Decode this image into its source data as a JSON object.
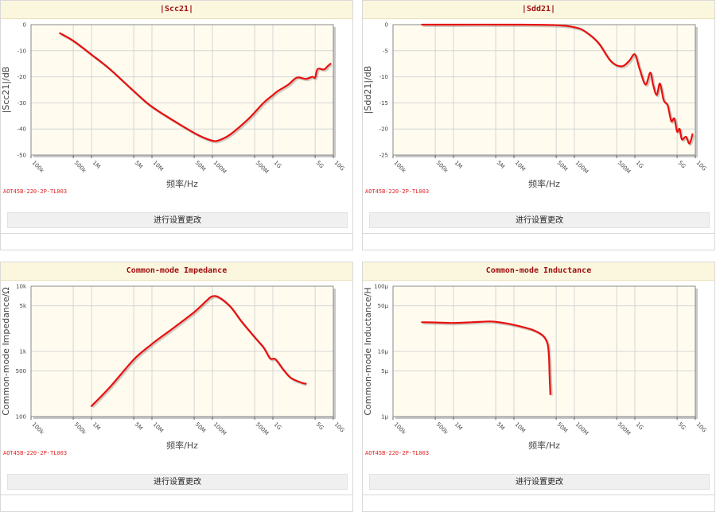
{
  "edit_button_label": "进行设置更改",
  "part_number": "AOT45B-220-2P-TL003",
  "chart_data": [
    {
      "id": "scc21",
      "type": "line",
      "title": "|Scc21|",
      "xlabel": "频率/Hz",
      "ylabel": "|Scc21|/dB",
      "x_scale": "log",
      "xlim": [
        100000,
        10000000000
      ],
      "ylim": [
        -50,
        0
      ],
      "x_ticks": [
        {
          "v": 100000,
          "label": "100k"
        },
        {
          "v": 500000,
          "label": "500k"
        },
        {
          "v": 1000000,
          "label": "1M"
        },
        {
          "v": 5000000,
          "label": "5M"
        },
        {
          "v": 10000000,
          "label": "10M"
        },
        {
          "v": 50000000,
          "label": "50M"
        },
        {
          "v": 100000000,
          "label": "100M"
        },
        {
          "v": 500000000,
          "label": "500M"
        },
        {
          "v": 1000000000,
          "label": "1G"
        },
        {
          "v": 5000000000,
          "label": "5G"
        },
        {
          "v": 10000000000,
          "label": "10G"
        }
      ],
      "y_ticks": [
        {
          "v": 0,
          "label": "0"
        },
        {
          "v": -10,
          "label": "-10"
        },
        {
          "v": -20,
          "label": "-20"
        },
        {
          "v": -30,
          "label": "-30"
        },
        {
          "v": -40,
          "label": "-40"
        },
        {
          "v": -50,
          "label": "-50"
        }
      ],
      "grid": true,
      "color": "#e81010",
      "series": [
        {
          "x": [
            300000,
            500000,
            1000000,
            2000000,
            5000000,
            10000000,
            30000000,
            60000000,
            100000000,
            130000000,
            200000000,
            400000000,
            700000000,
            1000000000,
            1200000000,
            1800000000,
            2500000000,
            3500000000,
            4500000000,
            5000000000,
            5500000000,
            7000000000,
            8000000000,
            9000000000
          ],
          "y": [
            -3.3,
            -6.2,
            -11.5,
            -17,
            -25.5,
            -31.5,
            -38.5,
            -42.5,
            -44.5,
            -44.3,
            -42,
            -36,
            -30,
            -27,
            -25.5,
            -23,
            -20.3,
            -20.8,
            -20,
            -20.3,
            -17,
            -17.2,
            -16,
            -15
          ]
        }
      ]
    },
    {
      "id": "sdd21",
      "type": "line",
      "title": "|Sdd21|",
      "xlabel": "频率/Hz",
      "ylabel": "|Sdd21|/dB",
      "x_scale": "log",
      "xlim": [
        100000,
        10000000000
      ],
      "ylim": [
        -25,
        0
      ],
      "x_ticks": [
        {
          "v": 100000,
          "label": "100k"
        },
        {
          "v": 500000,
          "label": "500k"
        },
        {
          "v": 1000000,
          "label": "1M"
        },
        {
          "v": 5000000,
          "label": "5M"
        },
        {
          "v": 10000000,
          "label": "10M"
        },
        {
          "v": 50000000,
          "label": "50M"
        },
        {
          "v": 100000000,
          "label": "100M"
        },
        {
          "v": 500000000,
          "label": "500M"
        },
        {
          "v": 1000000000,
          "label": "1G"
        },
        {
          "v": 5000000000,
          "label": "5G"
        },
        {
          "v": 10000000000,
          "label": "10G"
        }
      ],
      "y_ticks": [
        {
          "v": 0,
          "label": "0"
        },
        {
          "v": -5,
          "label": "-5"
        },
        {
          "v": -10,
          "label": "-10"
        },
        {
          "v": -15,
          "label": "-15"
        },
        {
          "v": -20,
          "label": "-20"
        },
        {
          "v": -25,
          "label": "-25"
        }
      ],
      "grid": true,
      "color": "#e81010",
      "series": [
        {
          "x": [
            300000,
            1000000,
            10000000,
            50000000,
            100000000,
            150000000,
            250000000,
            400000000,
            600000000,
            800000000,
            1000000000,
            1200000000,
            1500000000,
            1800000000,
            2000000000,
            2300000000,
            2600000000,
            3000000000,
            3500000000,
            4000000000,
            4500000000,
            5000000000,
            5500000000,
            6000000000,
            7000000000,
            8000000000,
            9000000000
          ],
          "y": [
            0,
            0,
            0,
            -0.1,
            -0.5,
            -1.3,
            -3.5,
            -7,
            -8,
            -7,
            -5.7,
            -8.5,
            -11.5,
            -9.2,
            -11.5,
            -13.5,
            -11.3,
            -14.5,
            -15.5,
            -18.5,
            -18,
            -20.5,
            -20,
            -22,
            -21.5,
            -22.8,
            -21
          ]
        }
      ]
    },
    {
      "id": "cm_impedance",
      "type": "line",
      "title": "Common-mode Impedance",
      "xlabel": "频率/Hz",
      "ylabel": "Common-mode Impedance/Ω",
      "x_scale": "log",
      "y_scale": "log",
      "xlim": [
        100000,
        10000000000
      ],
      "ylim": [
        100,
        10000
      ],
      "x_ticks": [
        {
          "v": 100000,
          "label": "100k"
        },
        {
          "v": 500000,
          "label": "500k"
        },
        {
          "v": 1000000,
          "label": "1M"
        },
        {
          "v": 5000000,
          "label": "5M"
        },
        {
          "v": 10000000,
          "label": "10M"
        },
        {
          "v": 50000000,
          "label": "50M"
        },
        {
          "v": 100000000,
          "label": "100M"
        },
        {
          "v": 500000000,
          "label": "500M"
        },
        {
          "v": 1000000000,
          "label": "1G"
        },
        {
          "v": 5000000000,
          "label": "5G"
        },
        {
          "v": 10000000000,
          "label": "10G"
        }
      ],
      "y_ticks": [
        {
          "v": 10000,
          "label": "10k"
        },
        {
          "v": 5000,
          "label": "5k"
        },
        {
          "v": 1000,
          "label": "1k"
        },
        {
          "v": 500,
          "label": "500"
        },
        {
          "v": 100,
          "label": "100"
        }
      ],
      "grid": true,
      "color": "#e81010",
      "series": [
        {
          "x": [
            1000000,
            2000000,
            5000000,
            10000000,
            20000000,
            50000000,
            80000000,
            100000000,
            130000000,
            200000000,
            300000000,
            500000000,
            700000000,
            900000000,
            1100000000,
            1500000000,
            2000000000,
            3000000000,
            3500000000
          ],
          "y": [
            145,
            280,
            750,
            1300,
            2100,
            4000,
            6000,
            7000,
            6700,
            4800,
            2900,
            1650,
            1150,
            780,
            760,
            520,
            390,
            330,
            320
          ]
        }
      ]
    },
    {
      "id": "cm_inductance",
      "type": "line",
      "title": "Common-mode Inductance",
      "xlabel": "频率/Hz",
      "ylabel": "Common-mode Inductance/H",
      "x_scale": "log",
      "y_scale": "log",
      "xlim": [
        100000,
        10000000000
      ],
      "ylim": [
        1,
        100
      ],
      "x_ticks": [
        {
          "v": 100000,
          "label": "100k"
        },
        {
          "v": 500000,
          "label": "500k"
        },
        {
          "v": 1000000,
          "label": "1M"
        },
        {
          "v": 5000000,
          "label": "5M"
        },
        {
          "v": 10000000,
          "label": "10M"
        },
        {
          "v": 50000000,
          "label": "50M"
        },
        {
          "v": 100000000,
          "label": "100M"
        },
        {
          "v": 500000000,
          "label": "500M"
        },
        {
          "v": 1000000000,
          "label": "1G"
        },
        {
          "v": 5000000000,
          "label": "5G"
        },
        {
          "v": 10000000000,
          "label": "10G"
        }
      ],
      "y_ticks": [
        {
          "v": 100,
          "label": "100μ"
        },
        {
          "v": 50,
          "label": "50μ"
        },
        {
          "v": 10,
          "label": "10μ"
        },
        {
          "v": 5,
          "label": "5μ"
        },
        {
          "v": 1,
          "label": "1μ"
        }
      ],
      "grid": true,
      "color": "#e81010",
      "series": [
        {
          "x": [
            300000,
            500000,
            1000000,
            2000000,
            4000000,
            6000000,
            10000000,
            20000000,
            30000000,
            36000000,
            38000000,
            39000000,
            40000000
          ],
          "y": [
            28,
            27.8,
            27.3,
            28,
            28.8,
            27.8,
            25.5,
            21.5,
            17.5,
            13,
            8,
            4,
            2.2
          ]
        }
      ]
    }
  ]
}
